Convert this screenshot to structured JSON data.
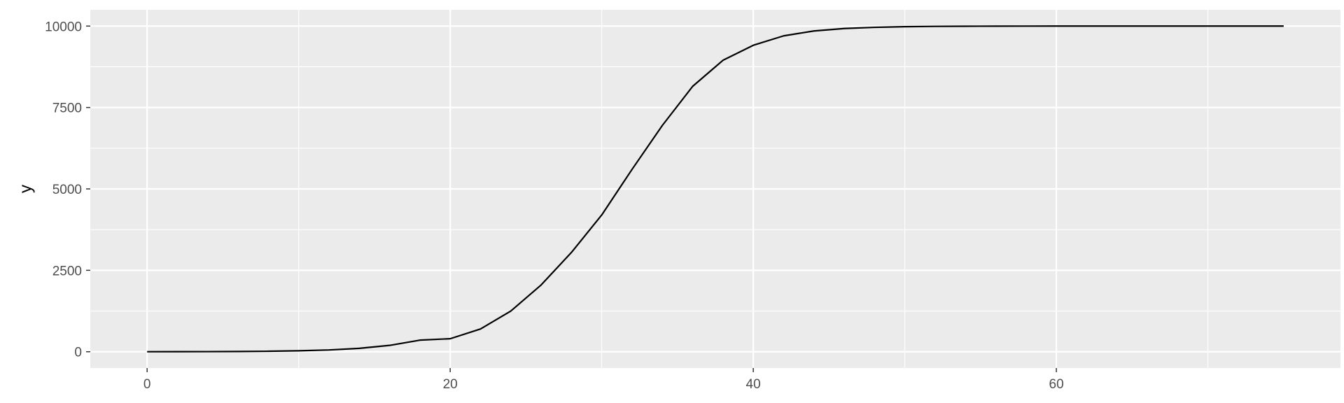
{
  "chart_data": {
    "type": "line",
    "title": "",
    "xlabel": "",
    "ylabel": "y",
    "xlim": [
      -3.75,
      78.75
    ],
    "ylim": [
      -500,
      10500
    ],
    "x_ticks": [
      0,
      20,
      40,
      60
    ],
    "x_tick_labels": [
      "0",
      "20",
      "40",
      "60"
    ],
    "x_minor_ticks": [
      10,
      30,
      50,
      70
    ],
    "y_ticks": [
      0,
      2500,
      5000,
      7500,
      10000
    ],
    "y_tick_labels": [
      "0",
      "2500",
      "5000",
      "7500",
      "10000"
    ],
    "y_minor_ticks": [
      1250,
      3750,
      6250,
      8750
    ],
    "grid": true,
    "legend": "none",
    "colors": {
      "panel": "#ebebeb",
      "grid": "#ffffff",
      "line": "#000000",
      "tick": "#333333",
      "text": "#4d4d4d"
    },
    "series": [
      {
        "x": [
          0,
          2,
          4,
          6,
          8,
          10,
          12,
          14,
          16,
          18,
          20,
          22,
          24,
          26,
          28,
          30,
          32,
          34,
          36,
          38,
          40,
          42,
          44,
          46,
          48,
          50,
          52,
          54,
          56,
          58,
          60,
          65,
          70,
          75
        ],
        "y": [
          1,
          2,
          4,
          8,
          15,
          29,
          55,
          104,
          195,
          356,
          400,
          700,
          1250,
          2050,
          3050,
          4200,
          5600,
          6950,
          8150,
          8950,
          9410,
          9700,
          9850,
          9925,
          9962,
          9981,
          9991,
          9995,
          9998,
          9999,
          10000,
          10000,
          10000,
          10000
        ]
      }
    ]
  }
}
